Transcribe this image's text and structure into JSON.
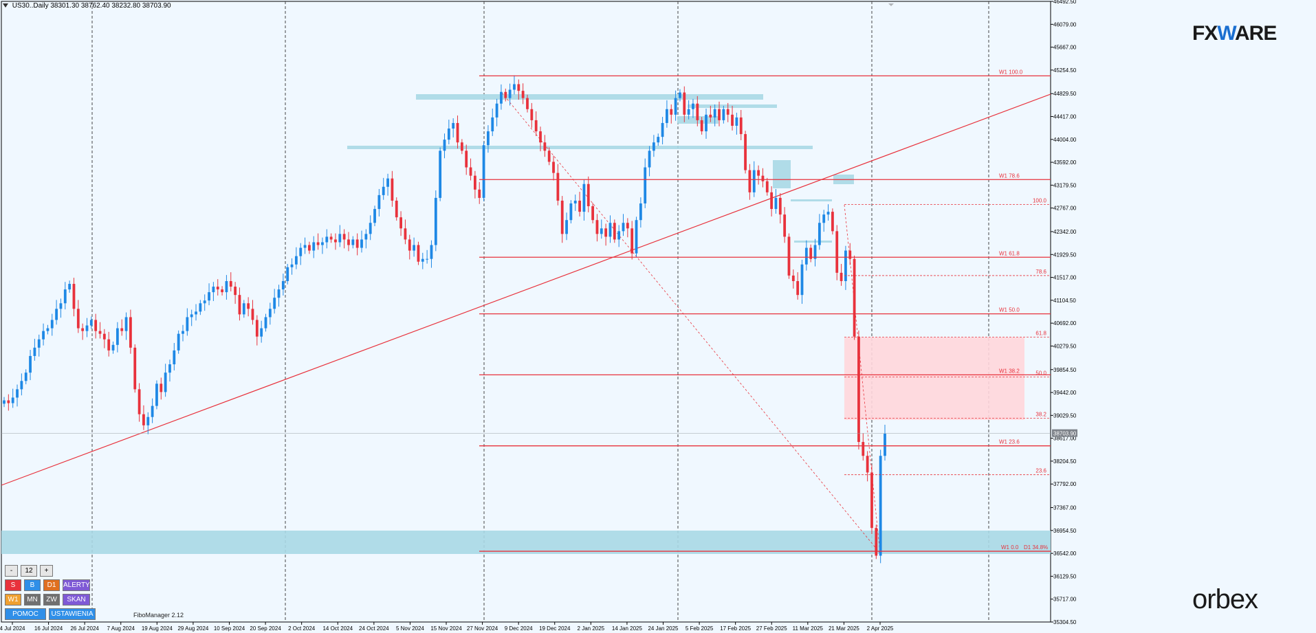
{
  "header": {
    "symbol": "US30..Daily",
    "open": "38301.30",
    "high": "38762.40",
    "low": "38232.80",
    "close": "38703.90"
  },
  "logos": {
    "fx_left": "FX",
    "fx_w": "W",
    "fx_right": "ARE",
    "orbex": "orbex"
  },
  "current_price": "38703.90",
  "price_labels": [
    "46492.50",
    "46079.00",
    "45667.00",
    "45254.50",
    "44829.50",
    "44417.00",
    "44004.00",
    "43592.00",
    "43179.50",
    "42767.00",
    "42342.00",
    "41929.50",
    "41517.00",
    "41104.50",
    "40692.00",
    "40279.50",
    "39854.50",
    "39442.00",
    "39029.50",
    "38617.00",
    "38204.50",
    "37792.00",
    "37367.00",
    "36954.50",
    "36542.00",
    "36129.50",
    "35717.00",
    "35304.50"
  ],
  "date_labels": [
    "4 Jul 2024",
    "16 Jul 2024",
    "26 Jul 2024",
    "7 Aug 2024",
    "19 Aug 2024",
    "29 Aug 2024",
    "10 Sep 2024",
    "20 Sep 2024",
    "2 Oct 2024",
    "14 Oct 2024",
    "24 Oct 2024",
    "5 Nov 2024",
    "15 Nov 2024",
    "27 Nov 2024",
    "9 Dec 2024",
    "19 Dec 2024",
    "2 Jan 2025",
    "14 Jan 2025",
    "24 Jan 2025",
    "5 Feb 2025",
    "17 Feb 2025",
    "27 Feb 2025",
    "11 Mar 2025",
    "21 Mar 2025",
    "2 Apr 2025"
  ],
  "fibo_w1": [
    {
      "label": "W1 100.0",
      "price": 45150
    },
    {
      "label": "W1 78.6",
      "price": 43280
    },
    {
      "label": "W1 61.8",
      "price": 41880
    },
    {
      "label": "W1 50.0",
      "price": 40860
    },
    {
      "label": "W1 38.2",
      "price": 39760
    },
    {
      "label": "W1 23.6",
      "price": 38480
    },
    {
      "label": "W1 0.0",
      "price": 36580
    }
  ],
  "fibo_w1_extra": "D1 34.8%",
  "fibo_d1": [
    {
      "label": "100.0",
      "price": 42830
    },
    {
      "label": "78.6",
      "price": 41550
    },
    {
      "label": "61.8",
      "price": 40440
    },
    {
      "label": "50.0",
      "price": 39720
    },
    {
      "label": "38.2",
      "price": 38980
    },
    {
      "label": "23.6",
      "price": 37960
    }
  ],
  "colors": {
    "bull": "#1e88e5",
    "bear": "#e8323c",
    "zone": "#a9d8e5",
    "pink": "#ffd6dc",
    "grid": "#444444",
    "bg": "#f0f8ff"
  },
  "panel": {
    "minus": "-",
    "value": "12",
    "plus": "+",
    "s": "S",
    "b": "B",
    "d1": "D1",
    "alerts": "ALERTY",
    "w1": "W1",
    "mn": "MN",
    "zw": "ZW",
    "skan": "SKAN",
    "help": "POMOC",
    "settings": "USTAWIENIA",
    "version": "FiboManager 2.12"
  },
  "chart_data": {
    "type": "candlestick",
    "symbol": "US30",
    "timeframe": "Daily",
    "ylim": [
      35304.5,
      46492.5
    ],
    "x_start": "4 Jul 2024",
    "x_end": "8 Apr 2025",
    "last": {
      "open": 38301.3,
      "high": 38762.4,
      "low": 38232.8,
      "close": 38703.9
    },
    "closes": [
      39300,
      39250,
      39350,
      39500,
      39650,
      39800,
      40100,
      40250,
      40400,
      40550,
      40600,
      40750,
      40950,
      41050,
      41300,
      41400,
      40950,
      40600,
      40550,
      40650,
      40750,
      40550,
      40500,
      40400,
      40200,
      40300,
      40600,
      40550,
      40800,
      40250,
      39500,
      39050,
      38850,
      39000,
      39200,
      39600,
      39450,
      39800,
      39950,
      40200,
      40500,
      40550,
      40800,
      40850,
      40900,
      41050,
      41100,
      41250,
      41350,
      41300,
      41250,
      41450,
      41350,
      41200,
      40850,
      41050,
      40950,
      40750,
      40450,
      40600,
      40800,
      40950,
      41150,
      41300,
      41450,
      41700,
      41750,
      41900,
      42050,
      42100,
      42000,
      42150,
      42100,
      42150,
      42250,
      42200,
      42150,
      42300,
      42200,
      42100,
      42200,
      42050,
      42200,
      42300,
      42500,
      42750,
      43000,
      43150,
      43300,
      42900,
      42600,
      42400,
      42200,
      42000,
      42100,
      41800,
      41850,
      41850,
      42100,
      42950,
      43800,
      44000,
      44200,
      44300,
      43950,
      43800,
      43500,
      43350,
      43100,
      42950,
      43900,
      44150,
      44400,
      44650,
      44860,
      44750,
      44900,
      45000,
      44880,
      44750,
      44550,
      44350,
      44150,
      43950,
      43800,
      43600,
      43400,
      42900,
      42300,
      42550,
      42850,
      42900,
      42700,
      43200,
      42800,
      42550,
      42300,
      42400,
      42250,
      42500,
      42200,
      42350,
      42500,
      42400,
      41950,
      42550,
      42850,
      43500,
      43800,
      43950,
      44050,
      44300,
      44550,
      44450,
      44750,
      44850,
      44450,
      44550,
      44650,
      44350,
      44150,
      44450,
      44400,
      44550,
      44350,
      44550,
      44450,
      44250,
      44400,
      44100,
      43450,
      43050,
      43450,
      43350,
      43250,
      43050,
      42750,
      42950,
      42650,
      42250,
      41550,
      41450,
      41200,
      41750,
      42050,
      41850,
      42100,
      42500,
      42650,
      42700,
      42350,
      41600,
      41450,
      42000,
      41850,
      40450,
      38550,
      38300,
      38000,
      37000,
      36500,
      38300,
      38700
    ]
  }
}
